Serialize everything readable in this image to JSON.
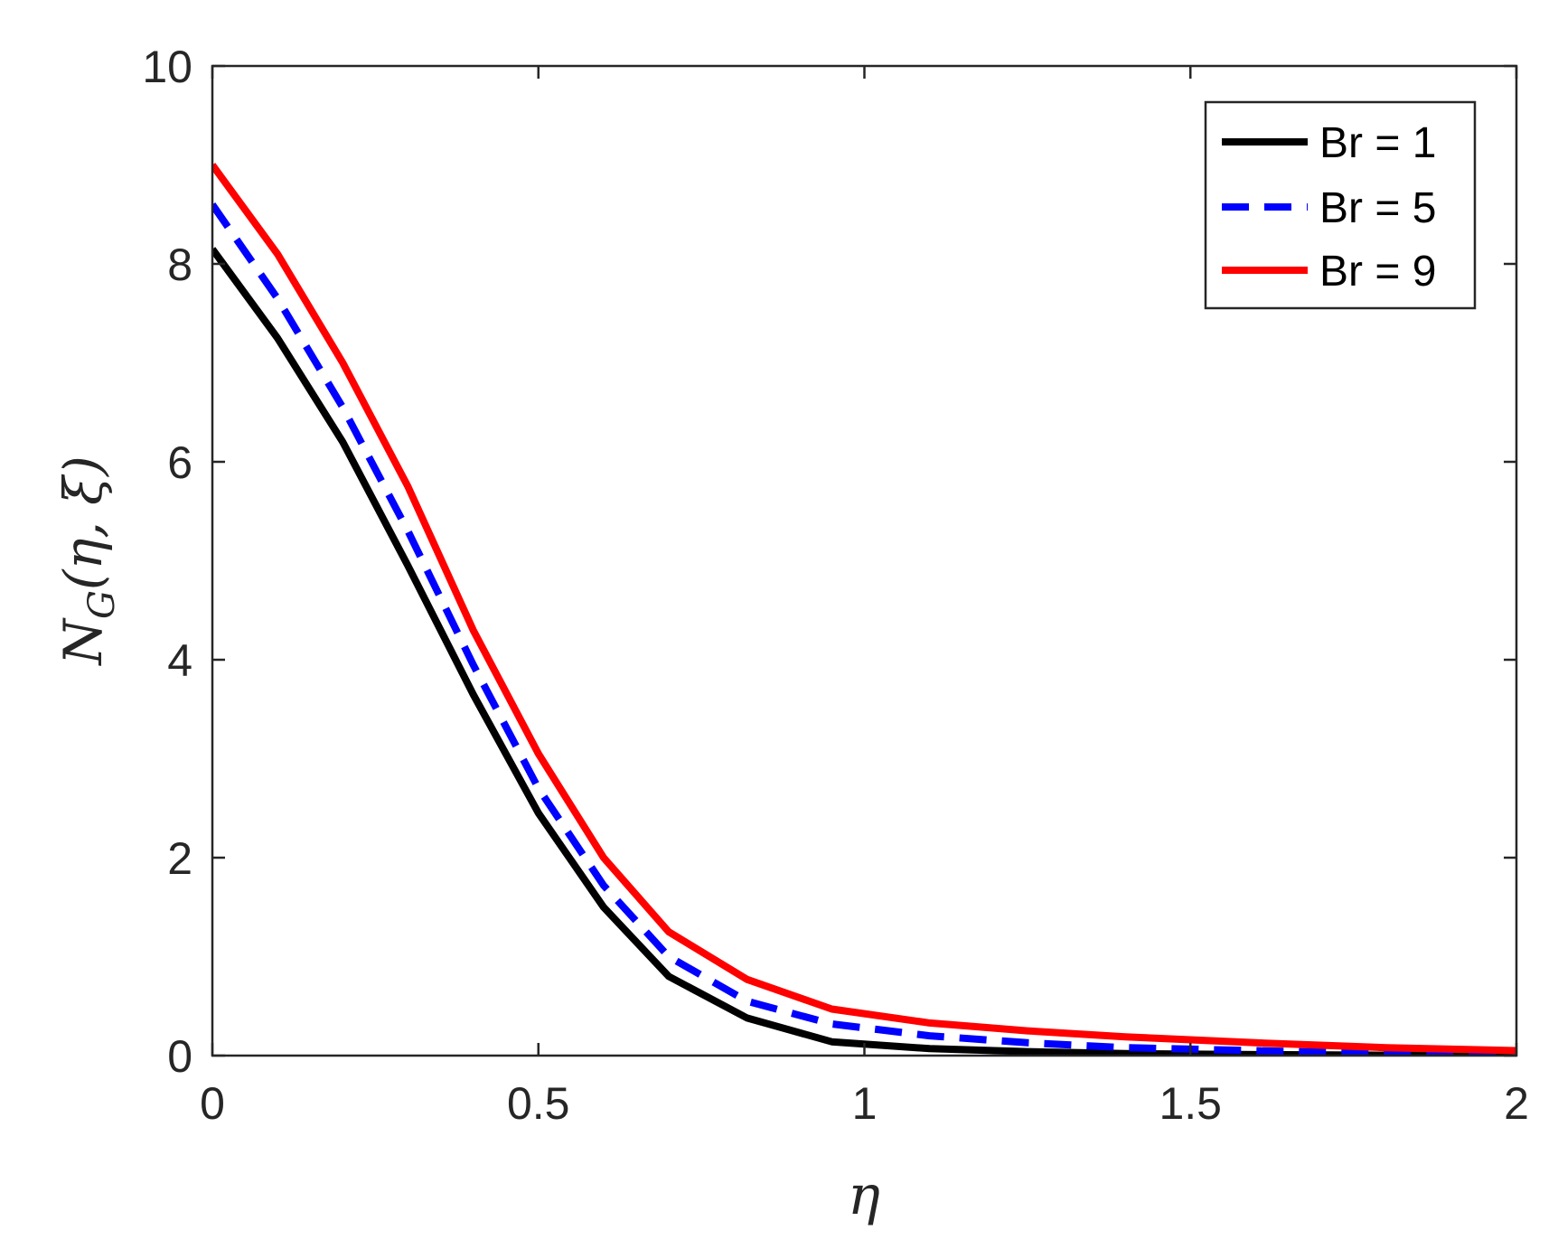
{
  "chart_data": {
    "type": "line",
    "title": "",
    "xlabel": "η",
    "ylabel_main": "N",
    "ylabel_sub": "G",
    "ylabel_args": "(η, ξ)",
    "xlim": [
      0,
      2
    ],
    "ylim": [
      0,
      10
    ],
    "xticks": [
      0,
      0.5,
      1,
      1.5,
      2
    ],
    "xtick_labels": [
      "0",
      "0.5",
      "1",
      "1.5",
      "2"
    ],
    "yticks": [
      0,
      2,
      4,
      6,
      8,
      10
    ],
    "ytick_labels": [
      "0",
      "2",
      "4",
      "6",
      "8",
      "10"
    ],
    "grid": false,
    "legend_position": "top-right",
    "x": [
      0,
      0.1,
      0.2,
      0.3,
      0.4,
      0.5,
      0.6,
      0.7,
      0.82,
      0.95,
      1.1,
      1.25,
      1.4,
      1.6,
      1.8,
      2.0
    ],
    "series": [
      {
        "name": "Br = 1",
        "color": "#000000",
        "style": "solid",
        "values": [
          8.15,
          7.25,
          6.2,
          4.95,
          3.65,
          2.45,
          1.5,
          0.8,
          0.38,
          0.14,
          0.07,
          0.04,
          0.02,
          0.01,
          0.005,
          0.0
        ]
      },
      {
        "name": "Br = 5",
        "color": "#0000ff",
        "style": "dashed",
        "values": [
          8.6,
          7.65,
          6.55,
          5.3,
          3.95,
          2.7,
          1.72,
          1.0,
          0.55,
          0.32,
          0.2,
          0.13,
          0.08,
          0.05,
          0.02,
          0.0
        ]
      },
      {
        "name": "Br = 9",
        "color": "#ff0000",
        "style": "solid",
        "values": [
          9.0,
          8.1,
          7.0,
          5.75,
          4.3,
          3.05,
          2.0,
          1.25,
          0.77,
          0.47,
          0.33,
          0.25,
          0.19,
          0.13,
          0.08,
          0.05
        ]
      }
    ]
  }
}
